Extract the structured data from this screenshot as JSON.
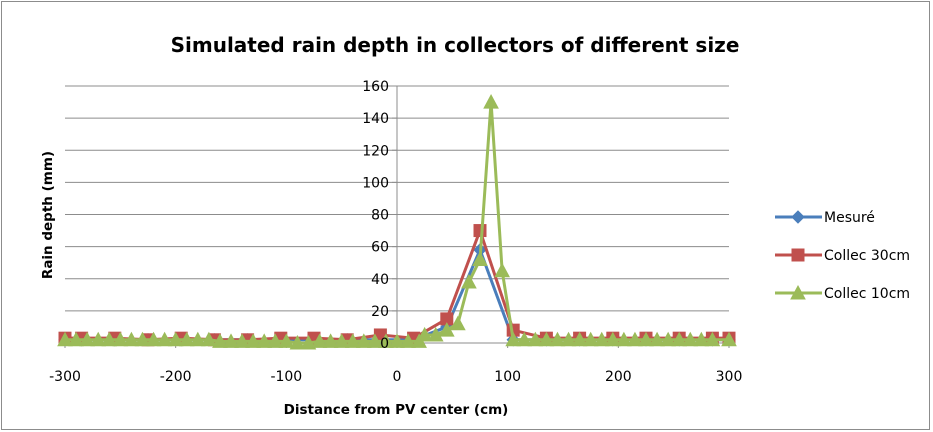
{
  "chart_data": {
    "type": "line",
    "title": "Simulated rain depth in collectors of different size",
    "xlabel": "Distance from PV center (cm)",
    "ylabel": "Rain depth (mm)",
    "xlim": [
      -300,
      300
    ],
    "ylim": [
      0,
      160
    ],
    "x_ticks": [
      -300,
      -200,
      -100,
      0,
      100,
      200,
      300
    ],
    "y_ticks": [
      0,
      20,
      40,
      60,
      80,
      100,
      120,
      140,
      160
    ],
    "grid": "horizontal",
    "legend_position": "right",
    "series": [
      {
        "name": "Mesuré",
        "color": "#4a7ebb",
        "marker": "diamond",
        "points": [
          [
            -300,
            2
          ],
          [
            -285,
            2
          ],
          [
            -255,
            2
          ],
          [
            -225,
            2
          ],
          [
            -195,
            2
          ],
          [
            -165,
            2
          ],
          [
            -135,
            2
          ],
          [
            -105,
            2
          ],
          [
            -75,
            2
          ],
          [
            -45,
            2
          ],
          [
            -15,
            2
          ],
          [
            15,
            2
          ],
          [
            45,
            10
          ],
          [
            75,
            58
          ],
          [
            105,
            2
          ],
          [
            135,
            2
          ],
          [
            165,
            2
          ],
          [
            195,
            2
          ],
          [
            225,
            2
          ],
          [
            255,
            2
          ],
          [
            285,
            2
          ],
          [
            300,
            2
          ]
        ]
      },
      {
        "name": "Collec 30cm",
        "color": "#c0504d",
        "marker": "square",
        "points": [
          [
            -300,
            3
          ],
          [
            -285,
            3
          ],
          [
            -255,
            3
          ],
          [
            -225,
            2
          ],
          [
            -195,
            3
          ],
          [
            -165,
            2
          ],
          [
            -135,
            2
          ],
          [
            -105,
            3
          ],
          [
            -75,
            3
          ],
          [
            -45,
            2
          ],
          [
            -15,
            5
          ],
          [
            15,
            3
          ],
          [
            45,
            15
          ],
          [
            75,
            70
          ],
          [
            105,
            8
          ],
          [
            135,
            3
          ],
          [
            165,
            3
          ],
          [
            195,
            3
          ],
          [
            225,
            3
          ],
          [
            255,
            3
          ],
          [
            285,
            3
          ],
          [
            300,
            3
          ]
        ]
      },
      {
        "name": "Collec 10cm",
        "color": "#9bbb59",
        "marker": "triangle",
        "points": [
          [
            -300,
            2
          ],
          [
            -290,
            2
          ],
          [
            -280,
            2
          ],
          [
            -270,
            2
          ],
          [
            -260,
            2
          ],
          [
            -250,
            2
          ],
          [
            -240,
            2
          ],
          [
            -230,
            2
          ],
          [
            -220,
            2
          ],
          [
            -210,
            2
          ],
          [
            -200,
            2
          ],
          [
            -190,
            2
          ],
          [
            -180,
            2
          ],
          [
            -170,
            2
          ],
          [
            -160,
            1
          ],
          [
            -150,
            1
          ],
          [
            -140,
            1
          ],
          [
            -130,
            1
          ],
          [
            -120,
            1
          ],
          [
            -110,
            1
          ],
          [
            -100,
            1
          ],
          [
            -90,
            0
          ],
          [
            -80,
            0
          ],
          [
            -70,
            1
          ],
          [
            -60,
            1
          ],
          [
            -50,
            1
          ],
          [
            -40,
            1
          ],
          [
            -30,
            1
          ],
          [
            -20,
            1
          ],
          [
            -10,
            1
          ],
          [
            0,
            1
          ],
          [
            10,
            1
          ],
          [
            20,
            1
          ],
          [
            25,
            5
          ],
          [
            35,
            5
          ],
          [
            45,
            8
          ],
          [
            55,
            12
          ],
          [
            65,
            38
          ],
          [
            75,
            52
          ],
          [
            85,
            150
          ],
          [
            95,
            45
          ],
          [
            105,
            2
          ],
          [
            115,
            2
          ],
          [
            125,
            2
          ],
          [
            135,
            2
          ],
          [
            145,
            2
          ],
          [
            155,
            2
          ],
          [
            165,
            2
          ],
          [
            175,
            2
          ],
          [
            185,
            2
          ],
          [
            195,
            2
          ],
          [
            205,
            2
          ],
          [
            215,
            2
          ],
          [
            225,
            2
          ],
          [
            235,
            2
          ],
          [
            245,
            2
          ],
          [
            255,
            2
          ],
          [
            265,
            2
          ],
          [
            275,
            2
          ],
          [
            285,
            2
          ],
          [
            300,
            2
          ]
        ]
      }
    ]
  }
}
